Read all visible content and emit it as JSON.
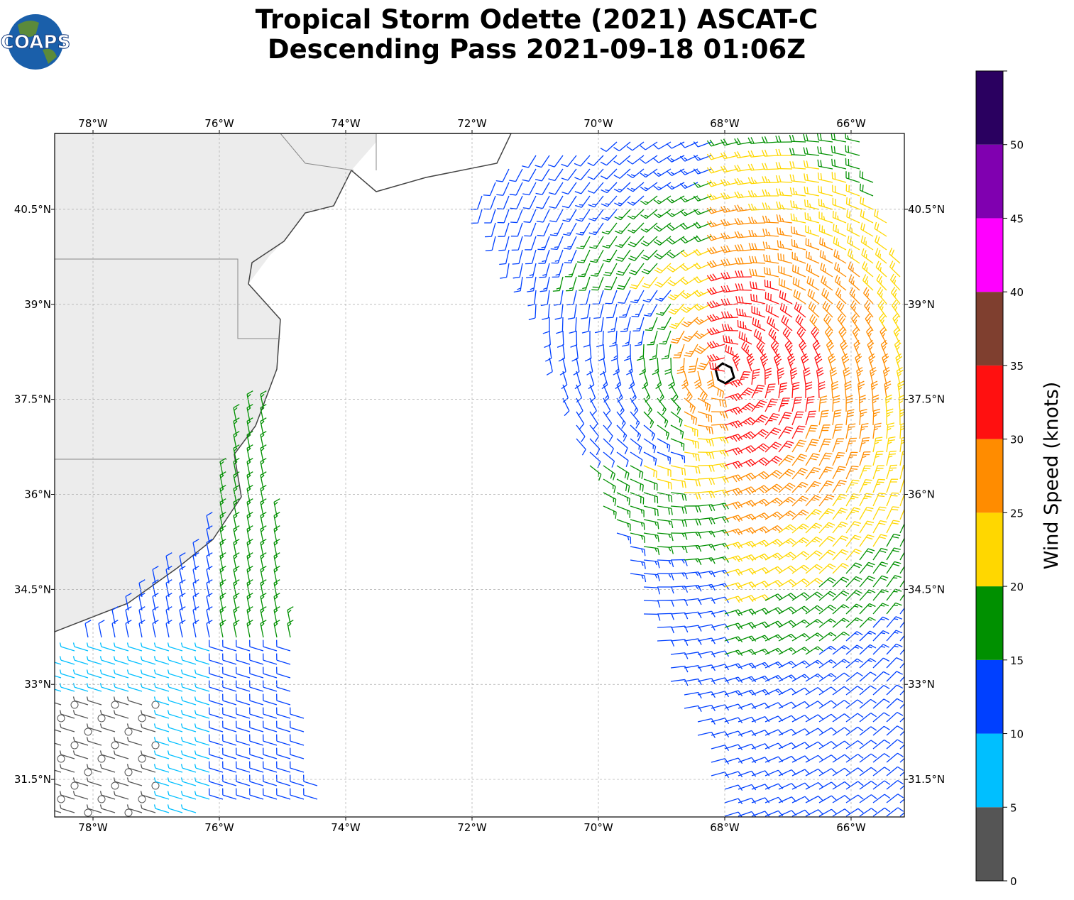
{
  "logo": "COAPS",
  "title": [
    "Tropical Storm Odette (2021) ASCAT-C",
    "Descending Pass 2021-09-18 01:06Z"
  ],
  "map": {
    "xlim": [
      -78.607,
      -65.157
    ],
    "ylim": [
      30.907,
      41.698
    ],
    "xticks": [
      {
        "value": -78,
        "label": "78°W"
      },
      {
        "value": -76,
        "label": "76°W"
      },
      {
        "value": -74,
        "label": "74°W"
      },
      {
        "value": -72,
        "label": "72°W"
      },
      {
        "value": -70,
        "label": "70°W"
      },
      {
        "value": -68,
        "label": "68°W"
      },
      {
        "value": -66,
        "label": "66°W"
      }
    ],
    "yticks": [
      {
        "value": 31.5,
        "label": "31.5°N"
      },
      {
        "value": 33,
        "label": "33°N"
      },
      {
        "value": 34.5,
        "label": "34.5°N"
      },
      {
        "value": 36,
        "label": "36°N"
      },
      {
        "value": 37.5,
        "label": "37.5°N"
      },
      {
        "value": 39,
        "label": "39°N"
      },
      {
        "value": 40.5,
        "label": "40.5°N"
      }
    ],
    "grid": true
  },
  "colorbar": {
    "label": "Wind Speed (knots)",
    "lim": [
      0,
      55
    ],
    "ticks": [
      0,
      5,
      10,
      15,
      20,
      25,
      30,
      35,
      40,
      45,
      50
    ],
    "colors": [
      "#555555",
      "#00bfff",
      "#0040ff",
      "#009000",
      "#ffd700",
      "#ff8c00",
      "#ff1010",
      "#7f3f2f",
      "#ff00ff",
      "#8000b0",
      "#2a0060"
    ]
  }
}
